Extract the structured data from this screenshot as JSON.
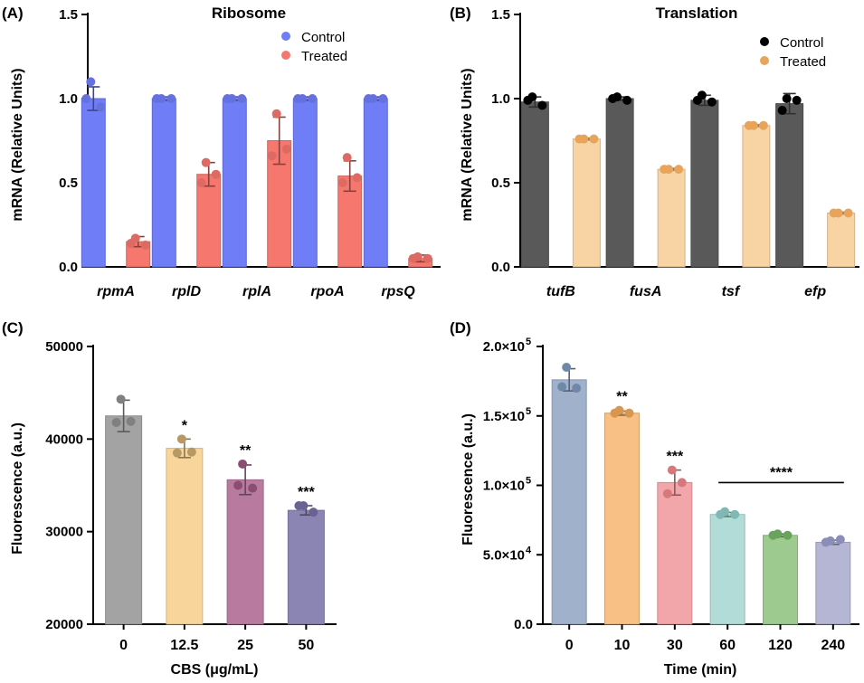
{
  "chart_data": [
    {
      "panel": "(A)",
      "type": "bar",
      "title": "Ribosome",
      "ylabel": "mRNA (Relative Units)",
      "xlabel": "",
      "ylim": [
        0,
        1.5
      ],
      "yticks": [
        "0.0",
        "0.5",
        "1.0",
        "1.5"
      ],
      "ytick_values": [
        0,
        0.5,
        1.0,
        1.5
      ],
      "categories": [
        "rpmA",
        "rplD",
        "rplA",
        "rpoA",
        "rpsQ"
      ],
      "italic_categories": true,
      "legend": "top-right",
      "series": [
        {
          "name": "Control",
          "color": "#6f7df7",
          "values": [
            1.0,
            1.0,
            1.0,
            1.0,
            1.0
          ],
          "err": [
            0.07,
            0.01,
            0.01,
            0.01,
            0.01
          ],
          "points": [
            [
              1.1,
              0.95,
              1.0
            ],
            [
              1.0,
              1.0,
              1.0
            ],
            [
              1.0,
              1.0,
              1.0
            ],
            [
              1.0,
              1.0,
              1.0
            ],
            [
              1.0,
              1.0,
              1.0
            ]
          ]
        },
        {
          "name": "Treated",
          "color": "#f5776e",
          "values": [
            0.15,
            0.55,
            0.75,
            0.54,
            0.05
          ],
          "err": [
            0.03,
            0.07,
            0.14,
            0.09,
            0.02
          ],
          "points": [
            [
              0.17,
              0.13,
              0.14
            ],
            [
              0.62,
              0.55,
              0.5
            ],
            [
              0.91,
              0.7,
              0.66
            ],
            [
              0.65,
              0.53,
              0.5
            ],
            [
              0.06,
              0.05,
              0.05
            ]
          ]
        }
      ]
    },
    {
      "panel": "(B)",
      "type": "bar",
      "title": "Translation",
      "ylabel": "mRNA (Relative Units)",
      "xlabel": "",
      "ylim": [
        0,
        1.5
      ],
      "yticks": [
        "0.0",
        "0.5",
        "1.0",
        "1.5"
      ],
      "ytick_values": [
        0,
        0.5,
        1.0,
        1.5
      ],
      "categories": [
        "tufB",
        "fusA",
        "tsf",
        "efp"
      ],
      "italic_categories": true,
      "legend": "top-right",
      "series": [
        {
          "name": "Control",
          "color": "#595959",
          "values": [
            0.98,
            1.0,
            0.99,
            0.97
          ],
          "err": [
            0.03,
            0.01,
            0.03,
            0.06
          ],
          "points": [
            [
              1.01,
              0.96,
              0.99
            ],
            [
              1.01,
              0.99,
              1.0
            ],
            [
              1.02,
              0.98,
              0.99
            ],
            [
              1.0,
              0.99,
              0.93
            ]
          ]
        },
        {
          "name": "Treated",
          "color": "#f8d3a3",
          "values": [
            0.76,
            0.58,
            0.84,
            0.32
          ],
          "err": [
            0.005,
            0.005,
            0.005,
            0.005
          ],
          "points": [
            [
              0.76,
              0.76,
              0.76
            ],
            [
              0.58,
              0.58,
              0.58
            ],
            [
              0.84,
              0.84,
              0.84
            ],
            [
              0.32,
              0.32,
              0.32
            ]
          ]
        }
      ]
    },
    {
      "panel": "(C)",
      "type": "bar",
      "title": "",
      "ylabel": "Fluorescence (a.u.)",
      "xlabel": "CBS (μg/mL)",
      "ylim": [
        20000,
        50000
      ],
      "yticks": [
        "20000",
        "30000",
        "40000",
        "50000"
      ],
      "ytick_values": [
        20000,
        30000,
        40000,
        50000
      ],
      "categories": [
        "0",
        "12.5",
        "25",
        "50"
      ],
      "italic_categories": false,
      "values": [
        42500,
        39000,
        35600,
        32300
      ],
      "err": [
        1700,
        1000,
        1600,
        500
      ],
      "colors": [
        "#a3a3a3",
        "#f8d59a",
        "#b87b9f",
        "#8b85b3"
      ],
      "point_colors": [
        "#808080",
        "#b79a63",
        "#8c4d72",
        "#6a6292"
      ],
      "points": [
        [
          44300,
          41900,
          41800
        ],
        [
          40000,
          38600,
          38500
        ],
        [
          37300,
          34700,
          35000
        ],
        [
          32800,
          32100,
          32800
        ]
      ],
      "significance": [
        "",
        "*",
        "**",
        "***"
      ]
    },
    {
      "panel": "(D)",
      "type": "bar",
      "title": "",
      "ylabel": "Fluorescence (a.u.)",
      "xlabel": "Time (min)",
      "ylim": [
        0,
        200000
      ],
      "yticks": [
        "0.0",
        "5.0×10",
        "1.0×10",
        "1.5×10",
        "2.0×10"
      ],
      "ytick_exponents": [
        "",
        "4",
        "5",
        "5",
        "5"
      ],
      "ytick_values": [
        0,
        50000,
        100000,
        150000,
        200000
      ],
      "categories": [
        "0",
        "10",
        "30",
        "60",
        "120",
        "240"
      ],
      "italic_categories": false,
      "values": [
        176000,
        152000,
        102000,
        79000,
        64000,
        59000
      ],
      "err": [
        8000,
        1500,
        9000,
        1500,
        1000,
        1500
      ],
      "colors": [
        "#9fb1cb",
        "#f8c084",
        "#f3a6a9",
        "#b2dcd8",
        "#9dcb8f",
        "#b4b6d3"
      ],
      "point_colors": [
        "#7088a8",
        "#d9964f",
        "#d7787c",
        "#80b8b3",
        "#6aa35c",
        "#8a8db8"
      ],
      "points": [
        [
          185000,
          170000,
          171000
        ],
        [
          154000,
          152000,
          152000
        ],
        [
          111000,
          102000,
          94000
        ],
        [
          81000,
          79000,
          79000
        ],
        [
          65000,
          64000,
          64000
        ],
        [
          60000,
          61000,
          59000
        ]
      ],
      "significance": [
        "",
        "**",
        "***",
        "",
        "",
        ""
      ],
      "bracket_label": "****",
      "bracket_span": [
        "60",
        "240"
      ]
    }
  ]
}
